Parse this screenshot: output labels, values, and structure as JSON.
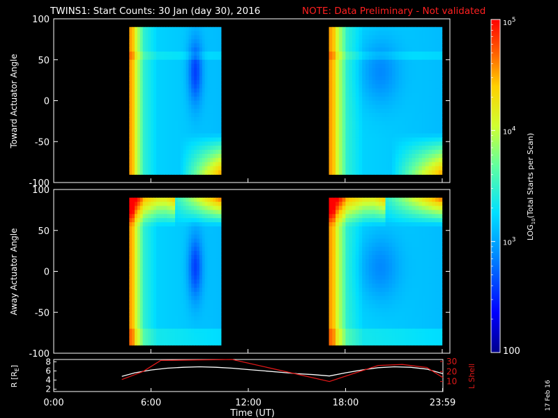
{
  "title": {
    "main": "TWINS1: Start Counts: 30 Jan (day  30), 2016",
    "note": "NOTE: Data Preliminary - Not validated"
  },
  "stamp": "17 Feb 16",
  "colors": {
    "title": "#ffffff",
    "note": "#ff2020",
    "background": "#000000",
    "frame": "#ffffff",
    "lshell": "#e01818",
    "radius": "#ffffff"
  },
  "colorbar": {
    "label": "LOG10(Total Starts per Scan)",
    "label_prefix": "LOG",
    "label_sub": "10",
    "label_suffix": "(Total Starts per Scan)",
    "ticks": [
      {
        "value": 100000,
        "label": "10",
        "sup": "5"
      },
      {
        "value": 10000,
        "label": "10",
        "sup": "4"
      },
      {
        "value": 1000,
        "label": "10",
        "sup": "3"
      },
      {
        "value": 100,
        "label": "100",
        "sup": ""
      }
    ],
    "range": [
      100,
      100000
    ],
    "scale": "log"
  },
  "chart_data": [
    {
      "type": "heatmap",
      "name": "toward",
      "ylabel": "Toward Actuator Angle",
      "xlabel": "",
      "ylim": [
        -100,
        100
      ],
      "yticks": [
        100,
        50,
        0,
        -50,
        -100
      ],
      "xlim_hours": [
        0,
        24
      ],
      "data_blocks": [
        {
          "start": "04:40",
          "end": "10:20"
        },
        {
          "start": "17:00",
          "end": "23:59"
        }
      ],
      "angle_range": [
        -90,
        90
      ],
      "note": ""
    },
    {
      "type": "heatmap",
      "name": "away",
      "ylabel": "Away Actuator Angle",
      "xlabel": "",
      "ylim": [
        -100,
        100
      ],
      "yticks": [
        100,
        50,
        0,
        -50,
        -100
      ],
      "xlim_hours": [
        0,
        24
      ],
      "data_blocks": [
        {
          "start": "04:40",
          "end": "10:20"
        },
        {
          "start": "17:00",
          "end": "23:59"
        }
      ],
      "angle_range": [
        -90,
        90
      ]
    },
    {
      "type": "line",
      "name": "orbit",
      "ylabel_left": "R [RE]",
      "ylabel_left_prefix": "R [R",
      "ylabel_left_sub": "E",
      "ylabel_left_suffix": "]",
      "ylabel_right": "L Shell",
      "left_ticks": [
        2,
        4,
        6,
        8
      ],
      "left_ylim": [
        1.5,
        8.5
      ],
      "right_ticks": [
        10,
        20,
        30
      ],
      "right_ylim": [
        0,
        32
      ],
      "xlabel": "Time (UT)",
      "xticks": [
        "0:00",
        "6:00",
        "12:00",
        "18:00",
        "23:59"
      ],
      "xtick_hours": [
        0,
        6,
        12,
        18,
        23.98
      ],
      "series": [
        {
          "axis": "left",
          "color": "#ffffff",
          "x": [
            4.2,
            5,
            6,
            7,
            8,
            9,
            10,
            11,
            12,
            13,
            14,
            15,
            16,
            17,
            18,
            19,
            20,
            21,
            22,
            23,
            24
          ],
          "y": [
            4.8,
            5.6,
            6.2,
            6.6,
            6.8,
            6.9,
            6.8,
            6.6,
            6.3,
            6.0,
            5.7,
            5.4,
            5.2,
            4.9,
            5.6,
            6.2,
            6.7,
            6.9,
            6.8,
            6.4,
            5.4
          ]
        },
        {
          "axis": "right",
          "color": "#e01818",
          "x": [
            4.2,
            5.5,
            6.6,
            11.0,
            17.0,
            20.0,
            21.5,
            23.0,
            24.0
          ],
          "y": [
            12,
            20,
            31,
            32,
            10,
            26,
            27,
            24,
            14
          ]
        }
      ]
    }
  ]
}
